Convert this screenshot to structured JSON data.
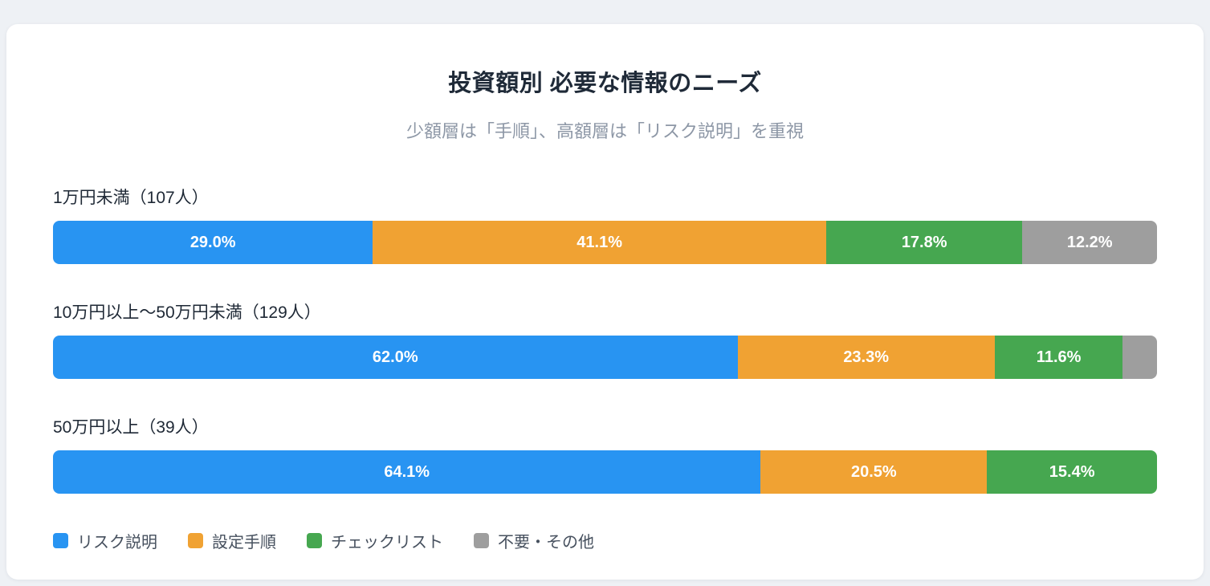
{
  "page": {
    "background_color": "#eef1f5",
    "card_color": "#ffffff"
  },
  "header": {
    "title": "投資額別 必要な情報のニーズ",
    "subtitle": "少額層は「手順」、高額層は「リスク説明」を重視"
  },
  "chart_data": {
    "type": "bar",
    "variant": "horizontal-stacked-100",
    "title": "投資額別 必要な情報のニーズ",
    "subtitle": "少額層は「手順」、高額層は「リスク説明」を重視",
    "categories": [
      "1万円未満（107人）",
      "10万円以上〜50万円未満（129人）",
      "50万円以上（39人）"
    ],
    "series": [
      {
        "name": "リスク説明",
        "color": "#2894f2",
        "values": [
          29.0,
          62.0,
          64.1
        ]
      },
      {
        "name": "設定手順",
        "color": "#f0a233",
        "values": [
          41.1,
          23.3,
          20.5
        ]
      },
      {
        "name": "チェックリスト",
        "color": "#46a750",
        "values": [
          17.8,
          11.6,
          15.4
        ]
      },
      {
        "name": "不要・その他",
        "color": "#9e9e9e",
        "values": [
          12.2,
          3.1,
          0.0
        ]
      }
    ],
    "value_format": "percent_1dp",
    "label_min_value": 5,
    "xlim": [
      0,
      100
    ],
    "grid": false,
    "legend_position": "bottom-left"
  }
}
